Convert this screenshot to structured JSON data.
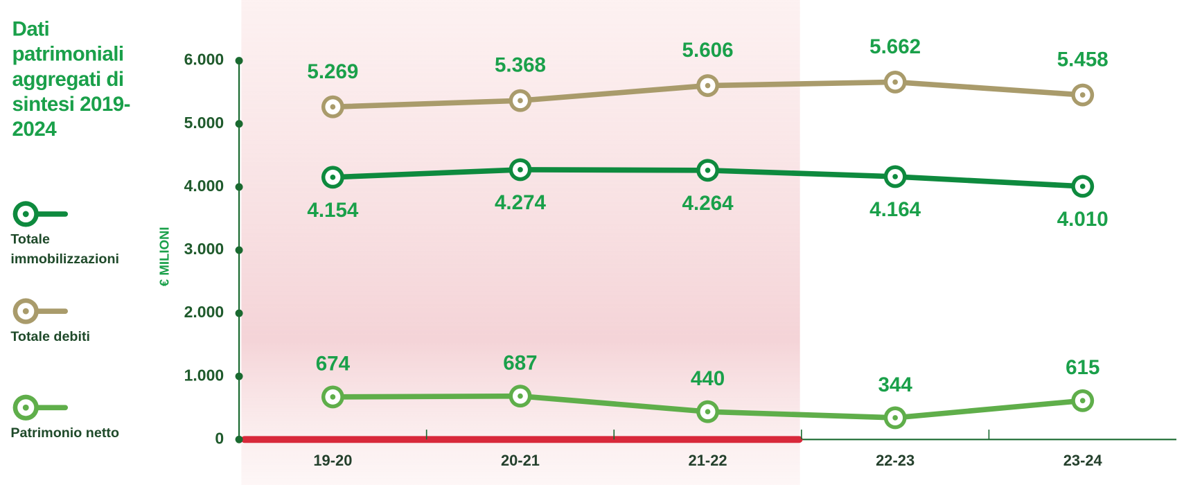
{
  "chart_data": {
    "type": "line",
    "title": "Dati patrimoniali aggregati di sintesi 2019-2024",
    "y_label": "€ MILIONI",
    "categories": [
      "19-20",
      "20-21",
      "21-22",
      "22-23",
      "23-24"
    ],
    "ylim": [
      0,
      6000
    ],
    "yticks": [
      0,
      {
        "value": 1000,
        "label": "1.000"
      },
      {
        "value": 2000,
        "label": "2.000"
      },
      {
        "value": 3000,
        "label": "3.000"
      },
      {
        "value": 4000,
        "label": "4.000"
      },
      {
        "value": 5000,
        "label": "5.000"
      },
      {
        "value": 6000,
        "label": "6.000"
      }
    ],
    "series": [
      {
        "name": "Totale immobilizzazioni",
        "color": "#0e8a3e",
        "values": [
          4154,
          4274,
          4264,
          4164,
          4010
        ],
        "value_labels": [
          "4.154",
          "4.274",
          "4.264",
          "4.164",
          "4.010"
        ]
      },
      {
        "name": "Totale debiti",
        "color": "#a99b6b",
        "values": [
          5269,
          5368,
          5606,
          5662,
          5458
        ],
        "value_labels": [
          "5.269",
          "5.368",
          "5.606",
          "5.662",
          "5.458"
        ]
      },
      {
        "name": "Patrimonio netto",
        "color": "#5fae4a",
        "values": [
          674,
          687,
          440,
          344,
          615
        ]
      }
    ]
  }
}
